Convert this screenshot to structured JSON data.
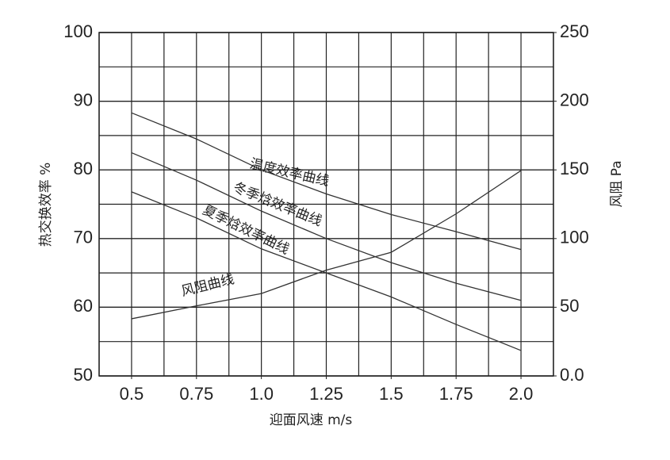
{
  "chart_data": {
    "type": "line",
    "x_label": "迎面风速 m/s",
    "y_label": "热交换效率 %",
    "y2_label": "风阻 Pa",
    "x": [
      0.5,
      0.75,
      1.0,
      1.25,
      1.5,
      1.75,
      2.0
    ],
    "xlim": [
      0.375,
      2.125
    ],
    "xticks": [
      0.5,
      0.75,
      {
        "value": 1.0,
        "label": "1.0"
      },
      1.25,
      1.5,
      1.75,
      {
        "value": 2.0,
        "label": "2.0"
      }
    ],
    "ylim": [
      50,
      100
    ],
    "yticks": [
      50,
      60,
      70,
      80,
      90,
      100
    ],
    "y2lim": [
      0,
      250
    ],
    "y2ticks": [
      {
        "value": 0,
        "label": "0.0"
      },
      50,
      100,
      150,
      200,
      250
    ],
    "grid": true,
    "series": [
      {
        "name": "温度效率曲线",
        "color": "#333333",
        "values": [
          88.3,
          84.5,
          80,
          76.5,
          73.5,
          71,
          68.4
        ]
      },
      {
        "name": "冬季焓效率曲线",
        "color": "#333333",
        "values": [
          82.5,
          78.5,
          74,
          70,
          66.5,
          63.5,
          61
        ]
      },
      {
        "name": "夏季焓效率曲线",
        "color": "#333333",
        "values": [
          76.8,
          73,
          68.5,
          65,
          61.5,
          57.5,
          53.7
        ]
      },
      {
        "name": "风阻曲线",
        "color": "#333333",
        "axis": "y2",
        "values": [
          41.6,
          51,
          60,
          77,
          90,
          118,
          149.5
        ]
      }
    ]
  }
}
